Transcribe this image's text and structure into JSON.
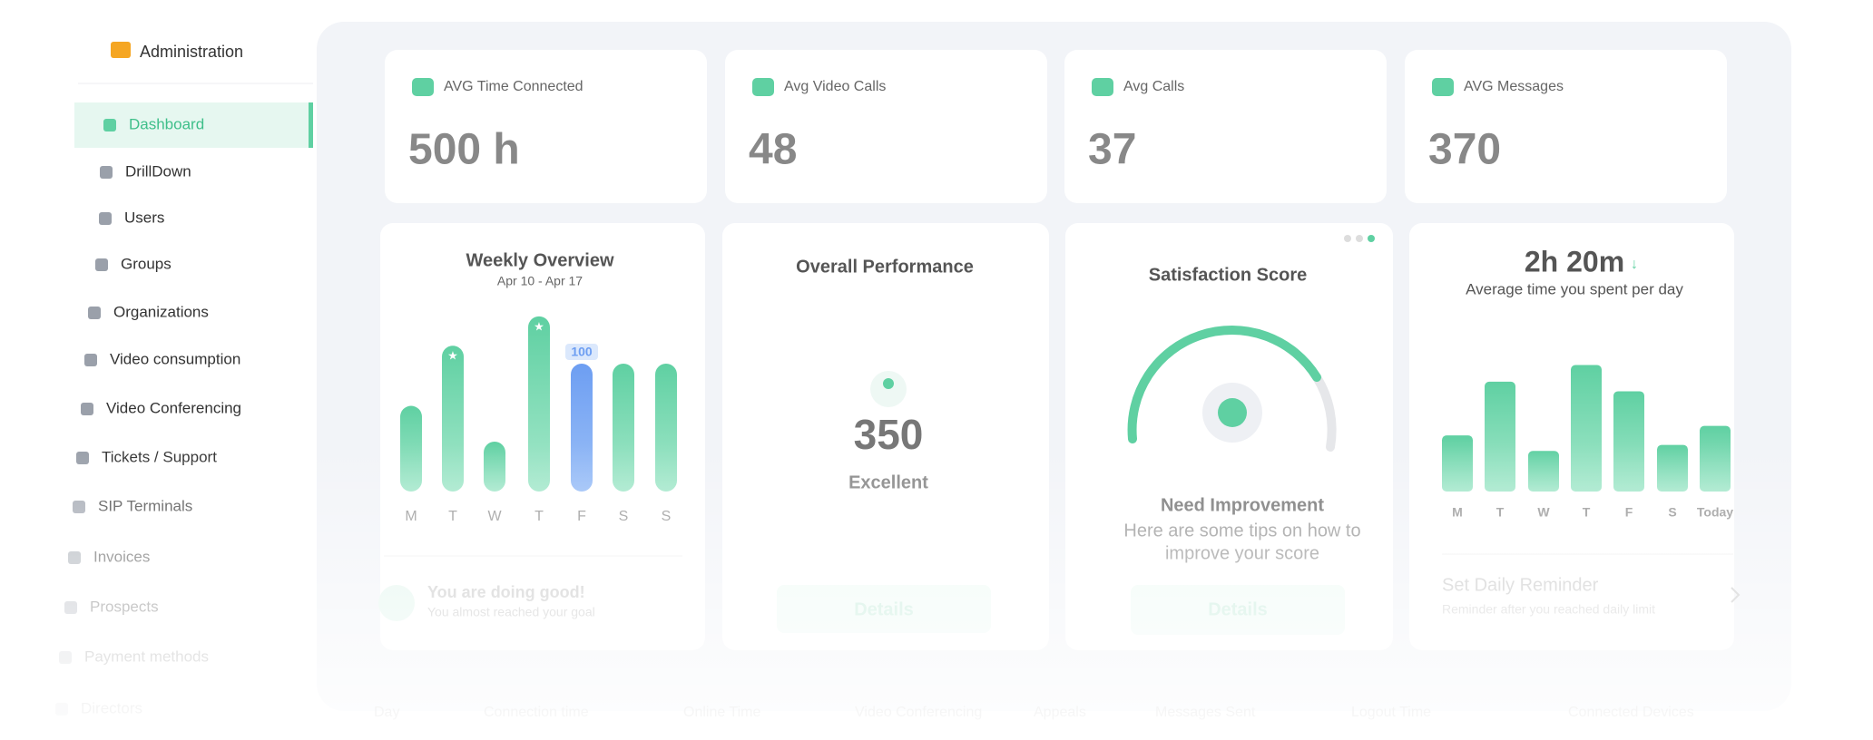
{
  "sidebar": {
    "title": "Administration",
    "items": [
      "Dashboard",
      "DrillDown",
      "Users",
      "Groups",
      "Organizations",
      "Video consumption",
      "Video Conferencing",
      "Tickets / Support",
      "SIP Terminals",
      "Invoices",
      "Prospects",
      "Payment methods",
      "Directors"
    ]
  },
  "stats": [
    {
      "label": "AVG Time Connected",
      "value": "500 h"
    },
    {
      "label": "Avg Video Calls",
      "value": "48"
    },
    {
      "label": "Avg Calls",
      "value": "37"
    },
    {
      "label": "AVG Messages",
      "value": "370"
    }
  ],
  "weekly": {
    "title": "Weekly Overview",
    "subtitle": "Apr 10 - Apr 17",
    "days": [
      "M",
      "T",
      "W",
      "T",
      "F",
      "S",
      "S"
    ],
    "values": [
      67,
      114,
      39,
      137,
      100,
      100,
      100
    ],
    "labeled_index": 4,
    "starred": [
      1,
      3
    ],
    "color": "#5fd0a2",
    "highlight_color": "#6d9ef2",
    "message": "You are doing good!",
    "note": "You almost reached your goal"
  },
  "performance": {
    "title": "Overall Performance",
    "score": 350,
    "rating": "Excellent",
    "button": "Details"
  },
  "satisfaction": {
    "title": "Satisfaction Score",
    "status": "Need Improvement",
    "tips": [
      "Here are some tips on how to",
      "improve your score"
    ],
    "button": "Details"
  },
  "time_spent": {
    "value": "2h 20m",
    "caption": "Average time you spent per day",
    "days": [
      "M",
      "T",
      "W",
      "T",
      "F",
      "S",
      "Today"
    ],
    "values": [
      47,
      92,
      34,
      106,
      84,
      39,
      55
    ],
    "color": "#5fd0a2",
    "reminder": "Set Daily Reminder",
    "reminder_note": "Reminder after you reached daily limit"
  },
  "table": {
    "columns": [
      "Day",
      "Connection time",
      "Online Time",
      "Video Conferencing",
      "Appeals",
      "Messages Sent",
      "Logout Time",
      "Connected Devices"
    ]
  }
}
